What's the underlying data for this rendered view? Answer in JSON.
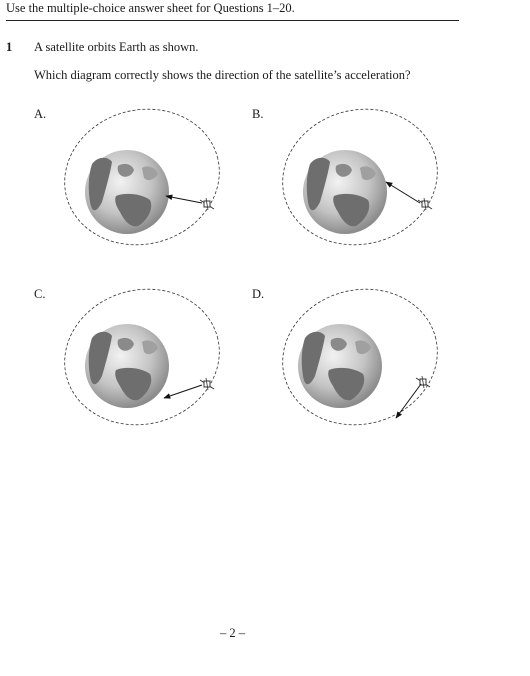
{
  "header": {
    "instruction": "Use the multiple-choice answer sheet for Questions 1–20."
  },
  "question": {
    "number": "1",
    "stem_line1": "A satellite orbits Earth as shown.",
    "stem_line2": "Which diagram correctly shows the direction of the satellite’s acceleration?"
  },
  "options": [
    {
      "label": "A.",
      "arrow_direction": "toward Earth's centre"
    },
    {
      "label": "B.",
      "arrow_direction": "toward Earth (upper-left)"
    },
    {
      "label": "C.",
      "arrow_direction": "toward Earth (lower-left)"
    },
    {
      "label": "D.",
      "arrow_direction": "away from Earth (downward)"
    }
  ],
  "footer": {
    "page_number": "– 2 –"
  }
}
